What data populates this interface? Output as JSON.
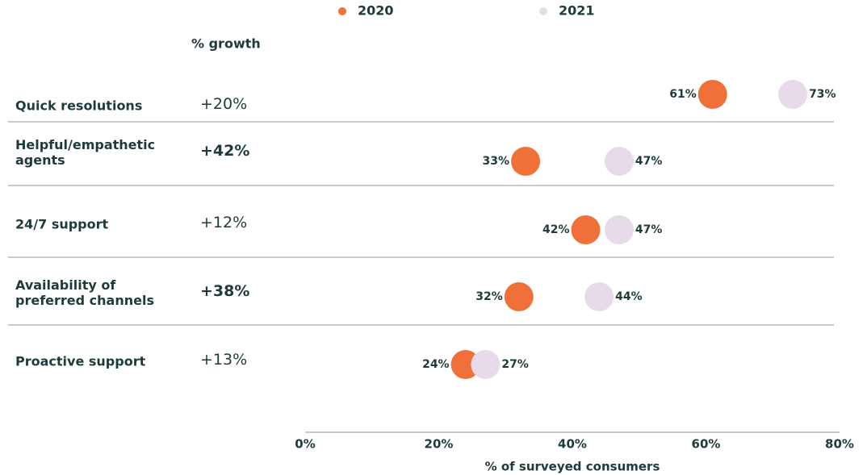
{
  "chart_data": {
    "type": "dot",
    "categories": [
      "Quick resolutions",
      "Helpful/empathetic agents",
      "24/7 support",
      "Availability of preferred channels",
      "Proactive support"
    ],
    "series": [
      {
        "name": "2020",
        "color": "#f0703a",
        "values": [
          61,
          33,
          42,
          32,
          24
        ],
        "value_labels": [
          "61%",
          "33%",
          "42%",
          "32%",
          "24%"
        ]
      },
      {
        "name": "2021",
        "color": "#e8dbe9",
        "values": [
          73,
          47,
          47,
          44,
          27
        ],
        "value_labels": [
          "73%",
          "47%",
          "47%",
          "44%",
          "27%"
        ]
      }
    ],
    "growth": {
      "title": "% growth",
      "values": [
        20,
        42,
        12,
        38,
        13
      ],
      "value_labels": [
        "+20%",
        "+42%",
        "+12%",
        "+38%",
        "+13%"
      ],
      "bold": [
        false,
        true,
        false,
        true,
        false
      ]
    },
    "xlabel": "% of surveyed consumers",
    "xlim": [
      0,
      80
    ],
    "xticks": [
      {
        "value": 0,
        "label": "0%"
      },
      {
        "value": 20,
        "label": "20%"
      },
      {
        "value": 40,
        "label": "40%"
      },
      {
        "value": 60,
        "label": "60%"
      },
      {
        "value": 80,
        "label": "80%"
      }
    ],
    "legend": "top"
  }
}
